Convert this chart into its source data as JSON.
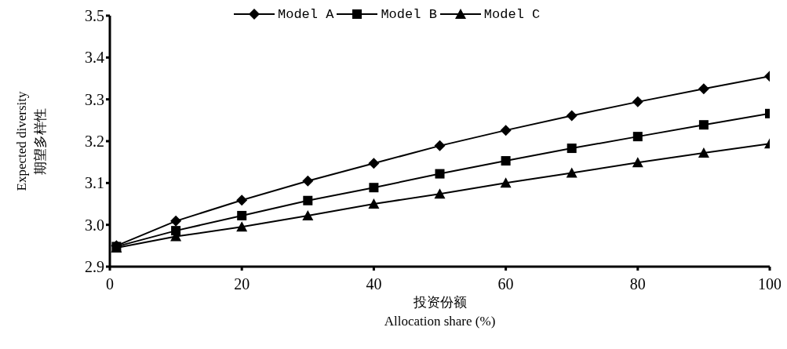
{
  "chart_data": {
    "type": "line",
    "xlabel": "投资份额\nAllocation share (%)",
    "ylabel": "Expected diversity\n期望多样性",
    "x": [
      1,
      10,
      20,
      30,
      40,
      50,
      60,
      70,
      80,
      90,
      100
    ],
    "series": [
      {
        "name": "Model A",
        "color": "#000000",
        "marker": "diamond",
        "values": [
          2.95,
          3.009,
          3.059,
          3.105,
          3.147,
          3.189,
          3.226,
          3.261,
          3.294,
          3.325,
          3.355
        ]
      },
      {
        "name": "Model B",
        "color": "#000000",
        "marker": "square",
        "values": [
          2.948,
          2.986,
          3.022,
          3.058,
          3.089,
          3.122,
          3.153,
          3.183,
          3.211,
          3.239,
          3.266
        ]
      },
      {
        "name": "Model C",
        "color": "#000000",
        "marker": "triangle",
        "values": [
          2.945,
          2.972,
          2.995,
          3.022,
          3.05,
          3.074,
          3.1,
          3.124,
          3.149,
          3.172,
          3.194
        ]
      }
    ],
    "xlim": [
      0,
      100
    ],
    "xticks": [
      0,
      20,
      40,
      60,
      80,
      100
    ],
    "ylim": [
      2.9,
      3.5
    ],
    "yticks": [
      {
        "value": 2.9,
        "label": "2.9"
      },
      {
        "value": 3,
        "label": "3.0"
      },
      {
        "value": 3.1,
        "label": "3.1"
      },
      {
        "value": 3.2,
        "label": "3.2"
      },
      {
        "value": 3.3,
        "label": "3.3"
      },
      {
        "value": 3.4,
        "label": "3.4"
      },
      {
        "value": 3.5,
        "label": "3.5"
      }
    ],
    "grid": false,
    "legend": "top",
    "line_style": "solid"
  }
}
